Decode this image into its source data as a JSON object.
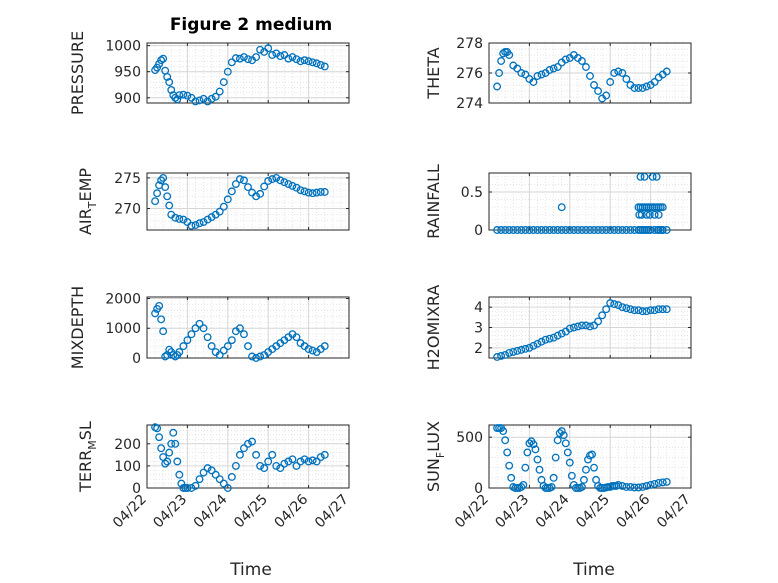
{
  "figure": {
    "title": "Figure 2 medium",
    "xlabel": "Time"
  },
  "style": {
    "marker_color": "#0072BD",
    "grid_color": "#dcdcdc",
    "axis_color": "#262626"
  },
  "chart_data": [
    {
      "type": "scatter",
      "title": "Figure 2 medium",
      "ylabel": {
        "main": "PRESSURE",
        "sub": ""
      },
      "ylim": [
        890,
        1005
      ],
      "yticks": [
        900,
        950,
        1000
      ],
      "yticklabels": [
        "900",
        "950",
        "1000"
      ],
      "xticklabels": [],
      "x": [
        0.2,
        0.25,
        0.3,
        0.35,
        0.4,
        0.45,
        0.5,
        0.55,
        0.6,
        0.65,
        0.7,
        0.75,
        0.8,
        0.9,
        1.0,
        1.1,
        1.2,
        1.3,
        1.4,
        1.5,
        1.6,
        1.7,
        1.8,
        1.9,
        2.0,
        2.1,
        2.2,
        2.3,
        2.4,
        2.5,
        2.6,
        2.7,
        2.8,
        2.9,
        3.0,
        3.1,
        3.2,
        3.3,
        3.4,
        3.5,
        3.6,
        3.7,
        3.8,
        3.9,
        4.0,
        4.1,
        4.2,
        4.3,
        4.4
      ],
      "y": [
        953,
        958,
        965,
        972,
        975,
        952,
        940,
        930,
        915,
        905,
        900,
        897,
        905,
        906,
        904,
        900,
        893,
        895,
        898,
        893,
        898,
        902,
        912,
        930,
        950,
        968,
        976,
        975,
        978,
        974,
        972,
        978,
        992,
        988,
        995,
        982,
        985,
        980,
        982,
        975,
        978,
        974,
        970,
        972,
        970,
        968,
        966,
        963,
        960
      ]
    },
    {
      "type": "scatter",
      "ylabel": {
        "main": "THETA",
        "sub": ""
      },
      "ylim": [
        274,
        278
      ],
      "yticks": [
        274,
        276,
        278
      ],
      "yticklabels": [
        "274",
        "276",
        "278"
      ],
      "xticklabels": [],
      "x": [
        0.2,
        0.25,
        0.3,
        0.35,
        0.4,
        0.45,
        0.5,
        0.6,
        0.7,
        0.8,
        0.9,
        1.0,
        1.1,
        1.2,
        1.3,
        1.4,
        1.5,
        1.6,
        1.7,
        1.8,
        1.9,
        2.0,
        2.1,
        2.2,
        2.3,
        2.4,
        2.5,
        2.6,
        2.7,
        2.8,
        2.9,
        3.0,
        3.1,
        3.2,
        3.3,
        3.4,
        3.5,
        3.6,
        3.7,
        3.8,
        3.9,
        4.0,
        4.1,
        4.2,
        4.3,
        4.4
      ],
      "y": [
        275.1,
        276.0,
        276.8,
        277.3,
        277.4,
        277.4,
        277.2,
        276.5,
        276.3,
        276.0,
        275.9,
        275.6,
        275.4,
        275.8,
        275.9,
        276.0,
        276.2,
        276.3,
        276.4,
        276.7,
        276.9,
        277.0,
        277.2,
        277.0,
        276.8,
        276.4,
        275.8,
        275.2,
        274.8,
        274.3,
        274.5,
        275.4,
        276.0,
        276.1,
        276.0,
        275.6,
        275.2,
        275.0,
        275.0,
        275.0,
        275.1,
        275.2,
        275.4,
        275.7,
        275.9,
        276.1
      ]
    },
    {
      "type": "scatter",
      "ylabel": {
        "main": "AIR",
        "sub": "T",
        "suffix": "EMP"
      },
      "ylim": [
        266.5,
        275.8
      ],
      "yticks": [
        270,
        275
      ],
      "yticklabels": [
        "270",
        "275"
      ],
      "xticklabels": [],
      "x": [
        0.2,
        0.25,
        0.3,
        0.35,
        0.4,
        0.45,
        0.5,
        0.55,
        0.6,
        0.7,
        0.8,
        0.9,
        1.0,
        1.1,
        1.2,
        1.3,
        1.4,
        1.5,
        1.6,
        1.7,
        1.8,
        1.9,
        2.0,
        2.1,
        2.2,
        2.3,
        2.4,
        2.5,
        2.6,
        2.7,
        2.8,
        2.9,
        3.0,
        3.1,
        3.2,
        3.3,
        3.4,
        3.5,
        3.6,
        3.7,
        3.8,
        3.9,
        4.0,
        4.1,
        4.2,
        4.3,
        4.4
      ],
      "y": [
        271.2,
        272.5,
        273.8,
        274.6,
        275.0,
        273.5,
        272.0,
        270.5,
        269.0,
        268.5,
        268.3,
        268.2,
        267.8,
        267.2,
        267.3,
        267.6,
        267.8,
        268.2,
        268.6,
        269.0,
        269.5,
        270.3,
        271.5,
        272.8,
        274.0,
        274.8,
        274.6,
        273.5,
        272.6,
        272.0,
        272.4,
        273.6,
        274.5,
        274.8,
        275.0,
        274.6,
        274.3,
        274.0,
        273.7,
        273.4,
        273.0,
        272.8,
        272.6,
        272.5,
        272.6,
        272.7,
        272.7
      ]
    },
    {
      "type": "scatter",
      "ylabel": {
        "main": "RAINFALL",
        "sub": ""
      },
      "ylim": [
        0,
        0.75
      ],
      "yticks": [
        0,
        0.5
      ],
      "yticklabels": [
        "0",
        "0.5"
      ],
      "xticklabels": [],
      "x": [
        0.2,
        0.3,
        0.4,
        0.5,
        0.6,
        0.7,
        0.8,
        0.9,
        1.0,
        1.1,
        1.2,
        1.3,
        1.4,
        1.5,
        1.6,
        1.7,
        1.8,
        1.9,
        2.0,
        2.1,
        2.2,
        2.3,
        2.4,
        2.5,
        2.6,
        2.7,
        2.8,
        2.9,
        3.0,
        3.1,
        3.2,
        3.3,
        3.4,
        3.5,
        3.6,
        3.7,
        3.8,
        3.9,
        4.0,
        4.1,
        4.2,
        4.3,
        4.4,
        1.8,
        3.7,
        3.75,
        3.8,
        3.85,
        3.9,
        3.95,
        4.0,
        4.05,
        4.1,
        4.15,
        4.2,
        4.25,
        4.3,
        3.72,
        3.78,
        3.9,
        3.98,
        4.1,
        4.2,
        3.75,
        3.85,
        4.05,
        4.15,
        3.75,
        3.85,
        3.95,
        4.18,
        4.25,
        4.3
      ],
      "y": [
        0,
        0,
        0,
        0,
        0,
        0,
        0,
        0,
        0,
        0,
        0,
        0,
        0,
        0,
        0,
        0,
        0,
        0,
        0,
        0,
        0,
        0,
        0,
        0,
        0,
        0,
        0,
        0,
        0,
        0,
        0,
        0,
        0,
        0,
        0,
        0,
        0,
        0,
        0,
        0,
        0,
        0,
        0,
        0.3,
        0.3,
        0.3,
        0.3,
        0.3,
        0.3,
        0.3,
        0.3,
        0.3,
        0.3,
        0.3,
        0.3,
        0.3,
        0.3,
        0.2,
        0.2,
        0.2,
        0.2,
        0.2,
        0.2,
        0.7,
        0.7,
        0.7,
        0.7,
        0.0,
        0.0,
        0.0,
        0.0,
        0.0,
        0.0
      ]
    },
    {
      "type": "scatter",
      "ylabel": {
        "main": "MIXDEPTH",
        "sub": ""
      },
      "ylim": [
        0,
        2050
      ],
      "yticks": [
        0,
        1000,
        2000
      ],
      "yticklabels": [
        "0",
        "1000",
        "2000"
      ],
      "xticklabels": [],
      "x": [
        0.2,
        0.25,
        0.3,
        0.35,
        0.4,
        0.45,
        0.5,
        0.55,
        0.6,
        0.65,
        0.7,
        0.75,
        0.8,
        0.9,
        1.0,
        1.1,
        1.2,
        1.3,
        1.4,
        1.5,
        1.6,
        1.7,
        1.8,
        1.9,
        2.0,
        2.1,
        2.2,
        2.3,
        2.4,
        2.5,
        2.6,
        2.7,
        2.8,
        2.9,
        3.0,
        3.1,
        3.2,
        3.3,
        3.4,
        3.5,
        3.6,
        3.7,
        3.8,
        3.9,
        4.0,
        4.1,
        4.2,
        4.3,
        4.4
      ],
      "y": [
        1500,
        1650,
        1750,
        1300,
        900,
        50,
        100,
        280,
        200,
        100,
        50,
        100,
        200,
        400,
        600,
        800,
        1000,
        1150,
        1000,
        700,
        400,
        200,
        100,
        250,
        400,
        600,
        900,
        1000,
        800,
        400,
        50,
        0,
        50,
        100,
        200,
        300,
        400,
        500,
        600,
        700,
        800,
        700,
        500,
        400,
        300,
        250,
        200,
        300,
        400
      ]
    },
    {
      "type": "scatter",
      "ylabel": {
        "main": "H2OMIXRA",
        "sub": ""
      },
      "ylim": [
        1.5,
        4.5
      ],
      "yticks": [
        2,
        3,
        4
      ],
      "yticklabels": [
        "2",
        "3",
        "4"
      ],
      "xticklabels": [],
      "x": [
        0.2,
        0.3,
        0.4,
        0.5,
        0.6,
        0.7,
        0.8,
        0.9,
        1.0,
        1.1,
        1.2,
        1.3,
        1.4,
        1.5,
        1.6,
        1.7,
        1.8,
        1.9,
        2.0,
        2.1,
        2.2,
        2.3,
        2.4,
        2.5,
        2.6,
        2.7,
        2.8,
        2.9,
        3.0,
        3.1,
        3.2,
        3.3,
        3.4,
        3.5,
        3.6,
        3.7,
        3.8,
        3.9,
        4.0,
        4.1,
        4.2,
        4.3,
        4.4
      ],
      "y": [
        1.55,
        1.6,
        1.65,
        1.75,
        1.8,
        1.85,
        1.9,
        1.95,
        2.0,
        2.1,
        2.2,
        2.3,
        2.4,
        2.45,
        2.5,
        2.6,
        2.7,
        2.8,
        2.95,
        3.0,
        3.05,
        3.1,
        3.1,
        3.05,
        3.1,
        3.3,
        3.6,
        3.9,
        4.2,
        4.15,
        4.1,
        4.0,
        3.95,
        3.9,
        3.85,
        3.85,
        3.8,
        3.8,
        3.85,
        3.85,
        3.9,
        3.9,
        3.9
      ]
    },
    {
      "type": "scatter",
      "ylabel": {
        "main": "TERR",
        "sub": "M",
        "suffix": "SL"
      },
      "ylim": [
        0,
        285
      ],
      "yticks": [
        0,
        100,
        200
      ],
      "yticklabels": [
        "0",
        "100",
        "200"
      ],
      "xticklabels": [
        "04/22",
        "04/23",
        "04/24",
        "04/25",
        "04/26",
        "04/27"
      ],
      "x": [
        0.2,
        0.25,
        0.3,
        0.35,
        0.4,
        0.45,
        0.5,
        0.55,
        0.6,
        0.65,
        0.7,
        0.75,
        0.8,
        0.85,
        0.9,
        0.95,
        1.0,
        1.1,
        1.2,
        1.3,
        1.4,
        1.5,
        1.6,
        1.7,
        1.8,
        1.9,
        2.0,
        2.1,
        2.2,
        2.3,
        2.4,
        2.5,
        2.6,
        2.7,
        2.8,
        2.9,
        3.0,
        3.1,
        3.2,
        3.3,
        3.4,
        3.5,
        3.6,
        3.7,
        3.8,
        3.9,
        4.0,
        4.1,
        4.2,
        4.3,
        4.4
      ],
      "y": [
        275,
        270,
        230,
        180,
        140,
        110,
        120,
        160,
        200,
        250,
        200,
        120,
        60,
        20,
        0,
        0,
        0,
        0,
        10,
        40,
        70,
        90,
        80,
        60,
        40,
        20,
        0,
        50,
        100,
        150,
        180,
        200,
        210,
        150,
        100,
        90,
        120,
        150,
        100,
        90,
        110,
        120,
        130,
        100,
        120,
        130,
        120,
        125,
        120,
        140,
        150
      ]
    },
    {
      "type": "scatter",
      "ylabel": {
        "main": "SUN",
        "sub": "F",
        "suffix": "LUX"
      },
      "ylim": [
        0,
        620
      ],
      "yticks": [
        0,
        500
      ],
      "yticklabels": [
        "0",
        "500"
      ],
      "xticklabels": [
        "04/22",
        "04/23",
        "04/24",
        "04/25",
        "04/26",
        "04/27"
      ],
      "x": [
        0.2,
        0.25,
        0.3,
        0.35,
        0.4,
        0.45,
        0.5,
        0.55,
        0.6,
        0.65,
        0.7,
        0.75,
        0.8,
        0.85,
        0.9,
        0.95,
        1.0,
        1.05,
        1.1,
        1.15,
        1.2,
        1.25,
        1.3,
        1.35,
        1.4,
        1.45,
        1.5,
        1.55,
        1.6,
        1.65,
        1.7,
        1.75,
        1.8,
        1.85,
        1.9,
        1.95,
        2.0,
        2.05,
        2.1,
        2.15,
        2.2,
        2.25,
        2.3,
        2.35,
        2.4,
        2.45,
        2.5,
        2.55,
        2.6,
        2.65,
        2.7,
        2.75,
        2.8,
        2.85,
        2.9,
        2.95,
        3.0,
        3.05,
        3.1,
        3.15,
        3.2,
        3.3,
        3.4,
        3.5,
        3.6,
        3.7,
        3.8,
        3.9,
        4.0,
        4.1,
        4.2,
        4.3,
        4.4
      ],
      "y": [
        590,
        590,
        590,
        560,
        470,
        350,
        220,
        100,
        10,
        0,
        0,
        0,
        10,
        30,
        200,
        350,
        440,
        460,
        430,
        380,
        280,
        180,
        80,
        20,
        0,
        0,
        0,
        10,
        100,
        300,
        470,
        540,
        560,
        520,
        440,
        350,
        250,
        120,
        30,
        0,
        0,
        0,
        10,
        80,
        180,
        280,
        320,
        330,
        200,
        80,
        20,
        0,
        0,
        0,
        5,
        10,
        10,
        20,
        20,
        20,
        30,
        20,
        10,
        10,
        5,
        5,
        10,
        20,
        30,
        40,
        50,
        55,
        60
      ]
    }
  ]
}
